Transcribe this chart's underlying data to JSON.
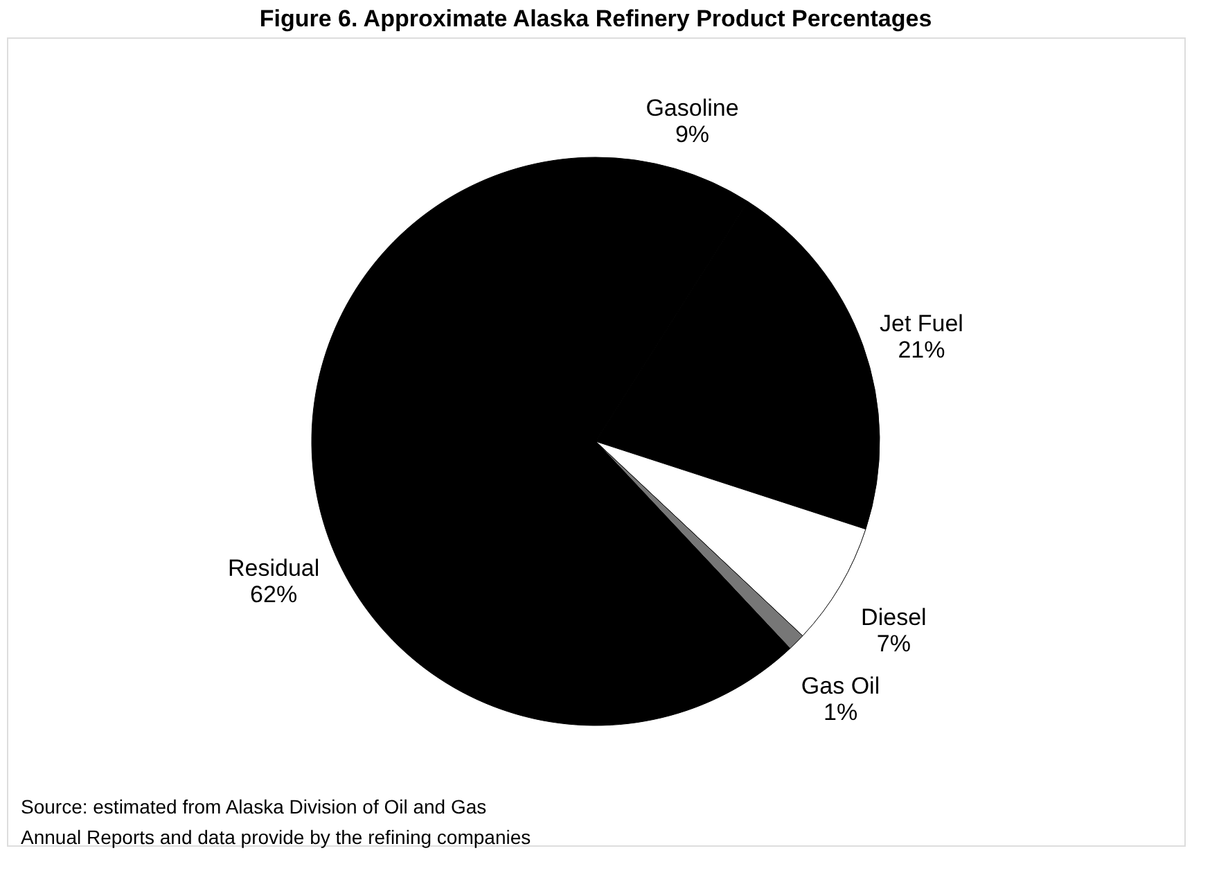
{
  "chart_data": {
    "type": "pie",
    "title": "Figure 6. Approximate Alaska Refinery Product Percentages",
    "categories": [
      "Gasoline",
      "Jet Fuel",
      "Diesel",
      "Gas Oil",
      "Residual"
    ],
    "values": [
      9,
      21,
      7,
      1,
      62
    ],
    "value_labels": [
      "9%",
      "21%",
      "7%",
      "1%",
      "62%"
    ],
    "colors": [
      "#000000",
      "#000000",
      "#ffffff",
      "#777777",
      "#000000"
    ],
    "legend": false,
    "annotations": [
      "Source: estimated from Alaska Division of Oil and Gas Annual Reports and data provide by the refining companies"
    ]
  }
}
